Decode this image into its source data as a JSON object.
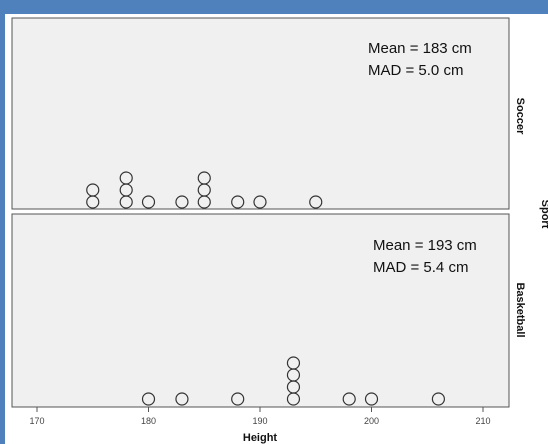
{
  "chart_data": {
    "type": "dot",
    "xlabel": "Height",
    "facet_label": "Sport",
    "xlim": [
      168,
      212
    ],
    "xticks": [
      "170",
      "180",
      "190",
      "200",
      "210"
    ],
    "grid": false,
    "panels": [
      {
        "name": "Soccer",
        "annotation": [
          "Mean = 183 cm",
          "MAD  = 5.0 cm"
        ],
        "values": [
          175,
          175,
          178,
          178,
          178,
          180,
          183,
          185,
          185,
          185,
          188,
          190,
          195
        ]
      },
      {
        "name": "Basketball",
        "annotation": [
          "Mean = 193 cm",
          "MAD  = 5.4 cm"
        ],
        "values": [
          180,
          183,
          188,
          193,
          193,
          193,
          193,
          198,
          200,
          206
        ]
      }
    ]
  }
}
